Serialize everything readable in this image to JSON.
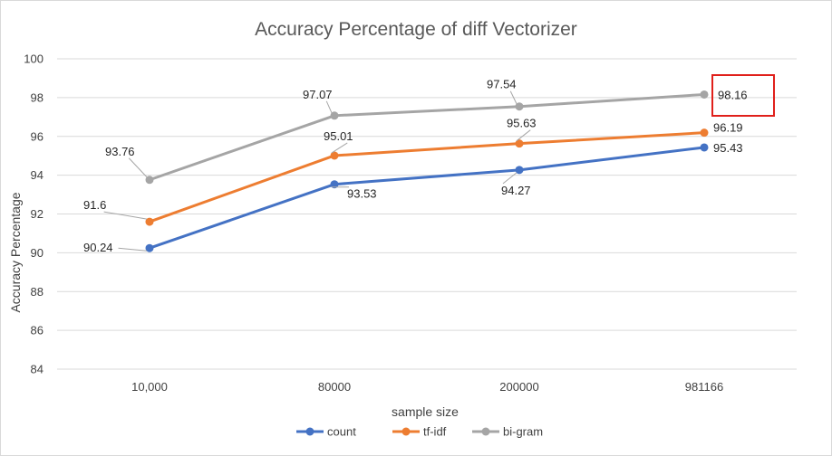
{
  "chart_data": {
    "type": "line",
    "title": "Accuracy Percentage of diff Vectorizer",
    "xlabel": "sample size",
    "ylabel": "Accuracy Percentage",
    "categories": [
      "10,000",
      "80000",
      "200000",
      "981166"
    ],
    "ylim": [
      84,
      100
    ],
    "yticks": [
      84,
      86,
      88,
      90,
      92,
      94,
      96,
      98,
      100
    ],
    "grid": true,
    "legend_position": "bottom",
    "series": [
      {
        "name": "count",
        "color": "#4472C4",
        "values": [
          90.24,
          93.53,
          94.27,
          95.43
        ],
        "labels": [
          "90.24",
          "93.53",
          "94.27",
          "95.43"
        ]
      },
      {
        "name": "tf-idf",
        "color": "#ED7D31",
        "values": [
          91.6,
          95.01,
          95.63,
          96.19
        ],
        "labels": [
          "91.6",
          "95.01",
          "95.63",
          "96.19"
        ]
      },
      {
        "name": "bi-gram",
        "color": "#A5A5A5",
        "values": [
          93.76,
          97.07,
          97.54,
          98.16
        ],
        "labels": [
          "93.76",
          "97.07",
          "97.54",
          "98.16"
        ]
      }
    ],
    "highlight": {
      "series": 2,
      "point": 3,
      "color": "#E0201B"
    }
  }
}
